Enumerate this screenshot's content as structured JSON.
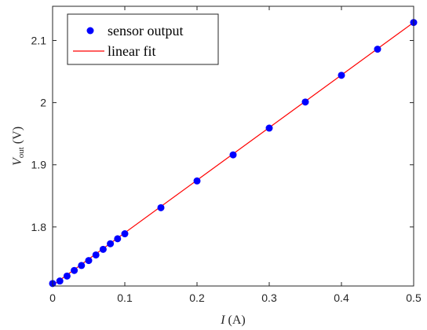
{
  "chart_data": {
    "type": "scatter",
    "title": "",
    "xlabel": {
      "italic": "I",
      "rest": " (A)"
    },
    "ylabel": {
      "italic": "V",
      "subscript": "out",
      "rest": "  (V)"
    },
    "xlim": [
      0,
      0.5
    ],
    "ylim": [
      1.705,
      2.155
    ],
    "xticks": [
      0,
      0.1,
      0.2,
      0.3,
      0.4,
      0.5
    ],
    "xtick_labels": [
      "0",
      "0.1",
      "0.2",
      "0.3",
      "0.4",
      "0.5"
    ],
    "yticks": [
      1.8,
      1.9,
      2.0,
      2.1
    ],
    "ytick_labels": [
      "1.8",
      "1.9",
      "2",
      "2.1"
    ],
    "grid": false,
    "legend_position": "top-left",
    "series": [
      {
        "name": "sensor output",
        "kind": "scatter",
        "color": "#0000ff",
        "x": [
          0,
          0.01,
          0.02,
          0.03,
          0.04,
          0.05,
          0.06,
          0.07,
          0.08,
          0.09,
          0.1,
          0.15,
          0.2,
          0.25,
          0.3,
          0.35,
          0.4,
          0.45,
          0.5
        ],
        "y": [
          1.709,
          1.713,
          1.721,
          1.73,
          1.738,
          1.746,
          1.755,
          1.764,
          1.773,
          1.781,
          1.789,
          1.831,
          1.874,
          1.916,
          1.959,
          2.001,
          2.044,
          2.086,
          2.129
        ]
      },
      {
        "name": "linear fit",
        "kind": "line",
        "color": "#ff0000",
        "x": [
          0,
          0.5
        ],
        "y": [
          1.706,
          2.129
        ]
      }
    ]
  }
}
